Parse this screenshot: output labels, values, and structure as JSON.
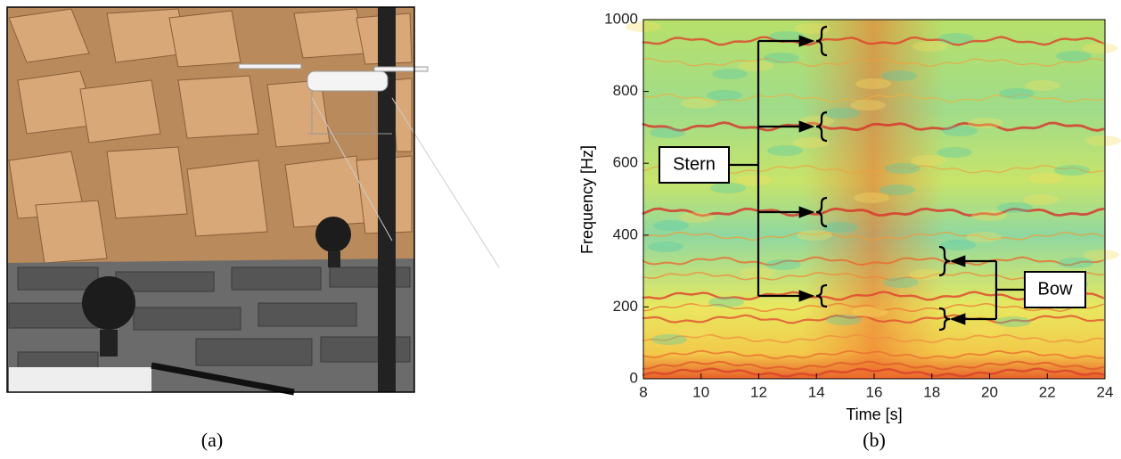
{
  "chart_data": {
    "type": "spectrogram",
    "xlabel": "Time [s]",
    "ylabel": "Frequency [Hz]",
    "xlim": [
      8,
      24
    ],
    "xticks": [
      8,
      10,
      12,
      14,
      16,
      18,
      20,
      22,
      24
    ],
    "ylim": [
      0,
      1000
    ],
    "yticks": [
      0,
      200,
      400,
      600,
      800,
      1000
    ],
    "annotations": [
      "Stern",
      "Bow"
    ]
  },
  "captions": [
    "(a)",
    "(b)"
  ]
}
